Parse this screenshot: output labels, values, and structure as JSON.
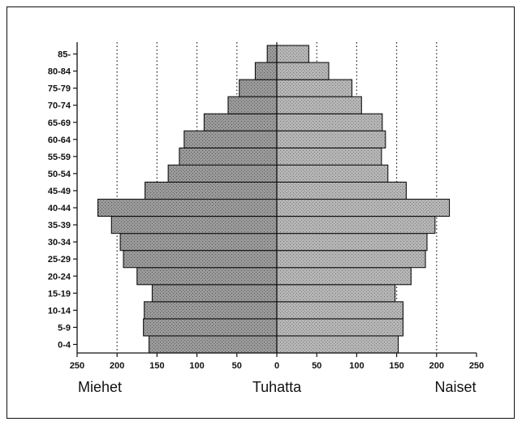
{
  "chart_data": {
    "type": "bar",
    "orientation": "horizontal",
    "layout": "population-pyramid",
    "categories": [
      "0-4",
      "5-9",
      "10-14",
      "15-19",
      "20-24",
      "25-29",
      "30-34",
      "35-39",
      "40-44",
      "45-49",
      "50-54",
      "55-59",
      "60-64",
      "65-69",
      "70-74",
      "75-79",
      "80-84",
      "85-"
    ],
    "series": [
      {
        "name": "Miehet",
        "side": "left",
        "color": "#9a9a9a",
        "values": [
          160,
          167,
          166,
          156,
          175,
          192,
          196,
          207,
          224,
          165,
          136,
          122,
          116,
          91,
          61,
          47,
          27,
          12
        ]
      },
      {
        "name": "Naiset",
        "side": "right",
        "color": "#b5b5b5",
        "values": [
          152,
          158,
          158,
          148,
          168,
          186,
          188,
          198,
          216,
          162,
          139,
          131,
          136,
          132,
          106,
          94,
          65,
          40
        ]
      }
    ],
    "xlim": [
      -250,
      250
    ],
    "xticks": [
      250,
      200,
      150,
      100,
      50,
      0,
      50,
      100,
      150,
      200,
      250
    ],
    "xtick_values": [
      -250,
      -200,
      -150,
      -100,
      -50,
      0,
      50,
      100,
      150,
      200,
      250
    ],
    "gridlines": [
      -200,
      -150,
      -100,
      -50,
      50,
      100,
      150,
      200
    ],
    "grid": "dotted vertical",
    "xlabel": "Tuhatta",
    "left_label": "Miehet",
    "right_label": "Naiset"
  }
}
